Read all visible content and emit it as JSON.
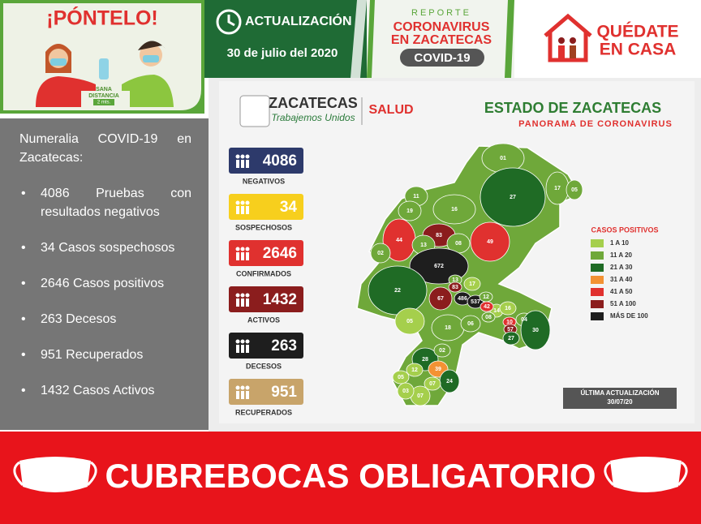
{
  "header": {
    "ponte": "¡PÓNTELO!",
    "sana": "SANA",
    "distancia": "DISTANCIA",
    "metros": "2 mts.",
    "actualizacion": "ACTUALIZACIÓN",
    "fecha": "30 de julio del 2020",
    "reporte": "REPORTE",
    "coronavirus": "CORONAVIRUS",
    "en_zacatecas": "EN ZACATECAS",
    "covid": "COVID-19",
    "quedate": "QUÉDATE",
    "en_casa": "EN CASA"
  },
  "summary": {
    "title": "Numeralia COVID-19 en Zacatecas:",
    "items": [
      "4086 Pruebas con resultados negativos",
      "34 Casos sospechosos",
      "2646 Casos positivos",
      "263 Decesos",
      "951 Recuperados",
      "1432 Casos Activos"
    ]
  },
  "panel": {
    "brand": "ZACATECAS",
    "slogan": "Trabajemos Unidos",
    "salud": "SALUD",
    "title": "ESTADO DE ZACATECAS",
    "subtitle": "PANORAMA DE CORONAVIRUS",
    "stats": [
      {
        "value": 4086,
        "label": "NEGATIVOS"
      },
      {
        "value": 34,
        "label": "SOSPECHOSOS"
      },
      {
        "value": 2646,
        "label": "CONFIRMADOS"
      },
      {
        "value": 1432,
        "label": "ACTIVOS"
      },
      {
        "value": 263,
        "label": "DECESOS"
      },
      {
        "value": 951,
        "label": "RECUPERADOS"
      }
    ],
    "legend": {
      "title": "CASOS POSITIVOS",
      "items": [
        "1 A 10",
        "11 A 20",
        "21 A 30",
        "31 A 40",
        "41 A 50",
        "51 A 100",
        "MÁS DE 100"
      ]
    },
    "update_label": "ÚLTIMA ACTUALIZACIÓN",
    "update_date": "30/07/20",
    "map_labels": [
      "01",
      "27",
      "17",
      "05",
      "11",
      "19",
      "16",
      "83",
      "44",
      "13",
      "08",
      "49",
      "02",
      "672",
      "22",
      "13",
      "17",
      "83",
      "67",
      "486",
      "537",
      "12",
      "14",
      "42",
      "08",
      "16",
      "05",
      "18",
      "06",
      "10",
      "04",
      "57",
      "27",
      "30",
      "28",
      "02",
      "39",
      "12",
      "05",
      "07",
      "24",
      "03",
      "07"
    ]
  },
  "footer": {
    "banner": "CUBREBOCAS OBLIGATORIO"
  }
}
